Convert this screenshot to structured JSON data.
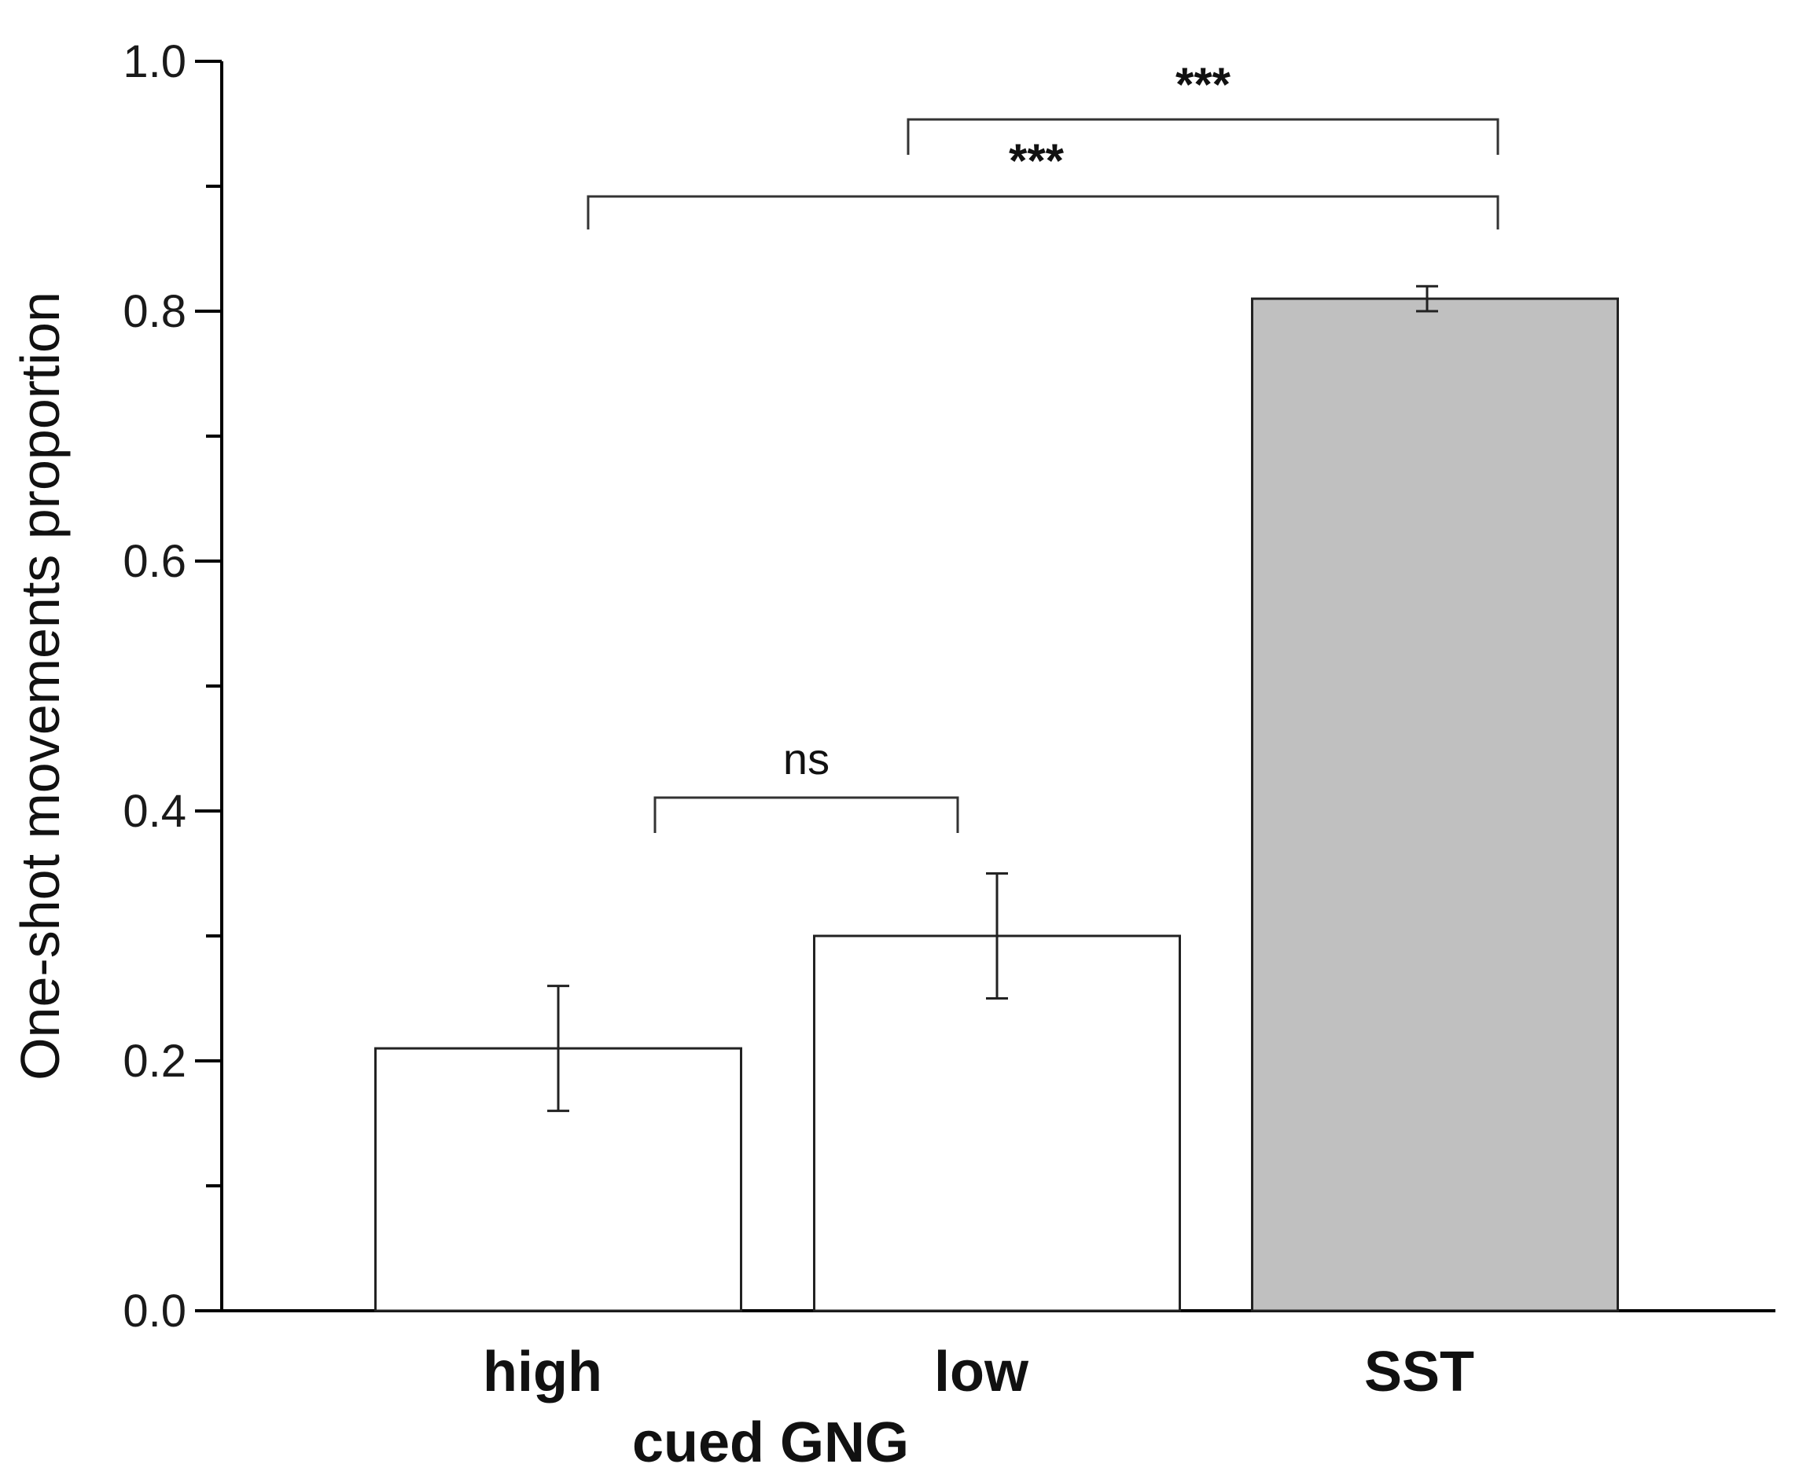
{
  "chart_data": {
    "type": "bar",
    "title": "",
    "ylabel": "One-shot movements proportion",
    "xlabel": "",
    "ylim": [
      0.0,
      1.0
    ],
    "yticks": [
      0.0,
      0.2,
      0.4,
      0.6,
      0.8,
      1.0
    ],
    "ytick_labels": [
      "0.0",
      "0.2",
      "0.4",
      "0.6",
      "0.8",
      "1.0"
    ],
    "categories": [
      "high",
      "low",
      "SST"
    ],
    "values": [
      0.21,
      0.3,
      0.81
    ],
    "errors": [
      0.05,
      0.05,
      0.01
    ],
    "bar_colors": [
      "#ffffff",
      "#ffffff",
      "#c0c0c0"
    ],
    "group_label": "cued GNG",
    "grid": false,
    "legend": "none",
    "significance": [
      {
        "from": "high",
        "to": "low",
        "label": "ns"
      },
      {
        "from": "low",
        "to": "SST",
        "label": "***"
      },
      {
        "from": "high",
        "to": "SST",
        "label": "***"
      }
    ]
  }
}
